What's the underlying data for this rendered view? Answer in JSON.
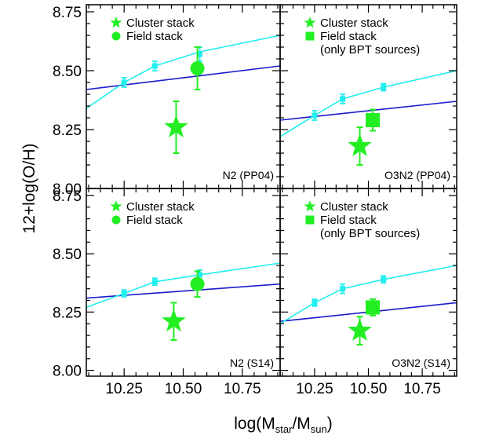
{
  "figure": {
    "ylabel": "12+log(O/H)",
    "xlabel_main": "log(M",
    "xlabel_sub1": "star",
    "xlabel_mid": "/M",
    "xlabel_sub2": "sun",
    "xlabel_end": ")"
  },
  "colors": {
    "cluster": "#22ee22",
    "field": "#22ee22",
    "mzr": "#22eeee",
    "relation": "#1a1acc",
    "axis": "#000000"
  },
  "chart_data": [
    {
      "type": "scatter",
      "panel": "top-left",
      "label": "N2 (PP04)",
      "legend": [
        "Cluster stack",
        "Field stack"
      ],
      "field_marker": "circle",
      "xlim": [
        10.09,
        10.91
      ],
      "ylim": [
        8.0,
        8.78
      ],
      "xticks": [],
      "yticks": [
        "8.00",
        "8.25",
        "8.50",
        "8.75"
      ],
      "line_relation": [
        [
          10.09,
          8.42
        ],
        [
          10.91,
          8.52
        ]
      ],
      "mzr_curve": [
        [
          10.09,
          8.34
        ],
        [
          10.25,
          8.45
        ],
        [
          10.38,
          8.52
        ],
        [
          10.57,
          8.58
        ],
        [
          10.91,
          8.65
        ]
      ],
      "mzr_points": [
        {
          "x": 10.25,
          "y": 8.45,
          "err": 0.02
        },
        {
          "x": 10.38,
          "y": 8.52,
          "err": 0.02
        },
        {
          "x": 10.57,
          "y": 8.57,
          "err": 0.03
        }
      ],
      "cluster_stack": {
        "x": 10.47,
        "y": 8.26,
        "err": 0.11
      },
      "field_stack": {
        "x": 10.56,
        "y": 8.51,
        "err": 0.09
      }
    },
    {
      "type": "scatter",
      "panel": "top-right",
      "label": "O3N2 (PP04)",
      "legend": [
        "Cluster stack",
        "Field stack",
        "(only BPT sources)"
      ],
      "field_marker": "square",
      "xlim": [
        10.09,
        10.91
      ],
      "ylim": [
        8.0,
        8.78
      ],
      "xticks": [],
      "yticks": [],
      "line_relation": [
        [
          10.09,
          8.29
        ],
        [
          10.91,
          8.37
        ]
      ],
      "mzr_curve": [
        [
          10.09,
          8.22
        ],
        [
          10.25,
          8.31
        ],
        [
          10.38,
          8.38
        ],
        [
          10.57,
          8.43
        ],
        [
          10.91,
          8.5
        ]
      ],
      "mzr_points": [
        {
          "x": 10.25,
          "y": 8.31,
          "err": 0.02
        },
        {
          "x": 10.38,
          "y": 8.38,
          "err": 0.02
        },
        {
          "x": 10.57,
          "y": 8.43,
          "err": 0.015
        }
      ],
      "cluster_stack": {
        "x": 10.46,
        "y": 8.18,
        "err": 0.08
      },
      "field_stack": {
        "x": 10.52,
        "y": 8.29,
        "err": 0.045
      }
    },
    {
      "type": "scatter",
      "panel": "bottom-left",
      "label": "N2 (S14)",
      "legend": [
        "Cluster stack",
        "Field stack"
      ],
      "field_marker": "circle",
      "xlim": [
        10.09,
        10.91
      ],
      "ylim": [
        7.975,
        8.78
      ],
      "xticks": [
        "10.25",
        "10.50",
        "10.75"
      ],
      "yticks": [
        "8.00",
        "8.25",
        "8.50",
        "8.75"
      ],
      "line_relation": [
        [
          10.09,
          8.31
        ],
        [
          10.91,
          8.37
        ]
      ],
      "mzr_curve": [
        [
          10.09,
          8.27
        ],
        [
          10.25,
          8.33
        ],
        [
          10.38,
          8.38
        ],
        [
          10.57,
          8.41
        ],
        [
          10.91,
          8.46
        ]
      ],
      "mzr_points": [
        {
          "x": 10.25,
          "y": 8.33,
          "err": 0.015
        },
        {
          "x": 10.38,
          "y": 8.38,
          "err": 0.015
        },
        {
          "x": 10.57,
          "y": 8.41,
          "err": 0.02
        }
      ],
      "cluster_stack": {
        "x": 10.46,
        "y": 8.21,
        "err": 0.08
      },
      "field_stack": {
        "x": 10.56,
        "y": 8.37,
        "err": 0.055
      }
    },
    {
      "type": "scatter",
      "panel": "bottom-right",
      "label": "O3N2 (S14)",
      "legend": [
        "Cluster stack",
        "Field stack",
        "(only BPT sources)"
      ],
      "field_marker": "square",
      "xlim": [
        10.09,
        10.91
      ],
      "ylim": [
        7.975,
        8.78
      ],
      "xticks": [
        "10.25",
        "10.50",
        "10.75"
      ],
      "yticks": [],
      "line_relation": [
        [
          10.09,
          8.21
        ],
        [
          10.91,
          8.29
        ]
      ],
      "mzr_curve": [
        [
          10.09,
          8.2
        ],
        [
          10.25,
          8.29
        ],
        [
          10.38,
          8.35
        ],
        [
          10.57,
          8.39
        ],
        [
          10.91,
          8.45
        ]
      ],
      "mzr_points": [
        {
          "x": 10.25,
          "y": 8.29,
          "err": 0.015
        },
        {
          "x": 10.38,
          "y": 8.35,
          "err": 0.02
        },
        {
          "x": 10.57,
          "y": 8.39,
          "err": 0.015
        }
      ],
      "cluster_stack": {
        "x": 10.46,
        "y": 8.17,
        "err": 0.06
      },
      "field_stack": {
        "x": 10.52,
        "y": 8.27,
        "err": 0.035
      }
    }
  ]
}
